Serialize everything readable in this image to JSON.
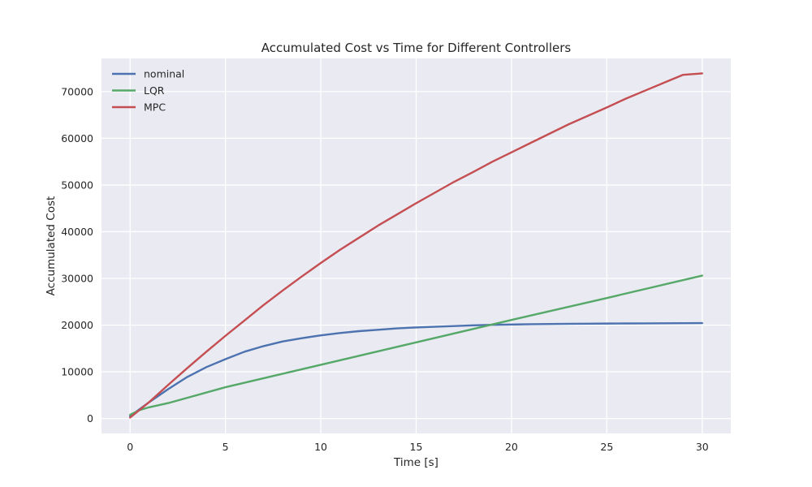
{
  "chart_data": {
    "type": "line",
    "title": "Accumulated Cost vs Time for Different Controllers",
    "xlabel": "Time [s]",
    "ylabel": "Accumulated Cost",
    "xlim": [
      -1.5,
      31.5
    ],
    "ylim": [
      -3200,
      77100
    ],
    "xticks": [
      0,
      5,
      10,
      15,
      20,
      25,
      30
    ],
    "yticks": [
      0,
      10000,
      20000,
      30000,
      40000,
      50000,
      60000,
      70000
    ],
    "grid": true,
    "legend_position": "top-left",
    "series": [
      {
        "name": "nominal",
        "color": "#4c72b0",
        "x": [
          0,
          1,
          2,
          3,
          4,
          5,
          6,
          7,
          8,
          9,
          10,
          11,
          12,
          13,
          14,
          15,
          16,
          17,
          18,
          19,
          20,
          21,
          22,
          23,
          24,
          25,
          26,
          27,
          28,
          29,
          30
        ],
        "values": [
          500,
          3500,
          6300,
          8900,
          11000,
          12700,
          14300,
          15500,
          16500,
          17200,
          17800,
          18300,
          18700,
          19000,
          19300,
          19500,
          19650,
          19800,
          19950,
          20050,
          20120,
          20180,
          20230,
          20270,
          20300,
          20330,
          20350,
          20370,
          20390,
          20400,
          20420
        ]
      },
      {
        "name": "LQR",
        "color": "#55a868",
        "x": [
          0,
          0.5,
          1,
          2,
          5,
          10,
          15,
          20,
          25,
          30
        ],
        "values": [
          800,
          1800,
          2400,
          3300,
          6700,
          11500,
          16300,
          21100,
          25800,
          30600
        ]
      },
      {
        "name": "MPC",
        "color": "#c44e52",
        "x": [
          0,
          1,
          2,
          3,
          4,
          5,
          6,
          7,
          8,
          9,
          10,
          11,
          12,
          13,
          14,
          15,
          16,
          17,
          18,
          19,
          20,
          21,
          22,
          23,
          24,
          25,
          26,
          27,
          28,
          29,
          30
        ],
        "values": [
          200,
          3500,
          7200,
          10800,
          14300,
          17700,
          21000,
          24300,
          27400,
          30400,
          33300,
          36100,
          38700,
          41300,
          43700,
          46100,
          48400,
          50700,
          52800,
          55000,
          57000,
          59000,
          61000,
          63000,
          64800,
          66600,
          68500,
          70200,
          71900,
          73600,
          73900
        ]
      }
    ]
  }
}
